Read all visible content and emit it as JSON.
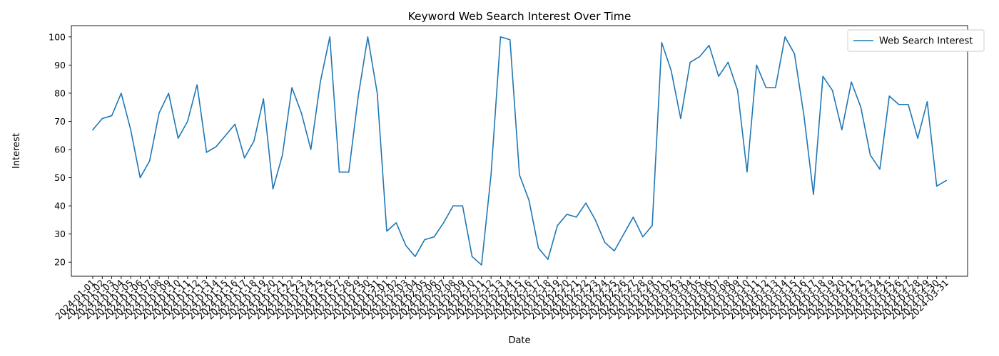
{
  "chart_data": {
    "type": "line",
    "title": "Keyword Web Search Interest Over Time",
    "xlabel": "Date",
    "ylabel": "Interest",
    "ylim": [
      15,
      104
    ],
    "yticks": [
      20,
      30,
      40,
      50,
      60,
      70,
      80,
      90,
      100
    ],
    "grid": false,
    "legend_position": "top-right",
    "color": "#1f77b4",
    "series": [
      {
        "name": "Web Search Interest",
        "values": [
          67,
          71,
          72,
          80,
          67,
          50,
          56,
          73,
          80,
          64,
          70,
          83,
          59,
          61,
          65,
          69,
          57,
          63,
          78,
          46,
          58,
          82,
          73,
          60,
          84,
          100,
          52,
          52,
          79,
          100,
          80,
          31,
          34,
          26,
          22,
          28,
          29,
          34,
          40,
          40,
          22,
          19,
          51,
          100,
          99,
          51,
          42,
          25,
          21,
          33,
          37,
          36,
          41,
          35,
          27,
          24,
          30,
          36,
          29,
          33,
          98,
          88,
          71,
          91,
          93,
          97,
          86,
          91,
          81,
          52,
          90,
          82,
          82,
          100,
          94,
          72,
          44,
          86,
          81,
          67,
          84,
          75,
          58,
          53,
          79,
          76,
          76,
          64,
          77,
          47,
          49
        ]
      }
    ],
    "x": [
      "2024-01-01",
      "2024-01-02",
      "2024-01-03",
      "2024-01-04",
      "2024-01-05",
      "2024-01-06",
      "2024-01-07",
      "2024-01-08",
      "2024-01-09",
      "2024-01-10",
      "2024-01-11",
      "2024-01-12",
      "2024-01-13",
      "2024-01-14",
      "2024-01-15",
      "2024-01-16",
      "2024-01-17",
      "2024-01-18",
      "2024-01-19",
      "2024-01-20",
      "2024-01-21",
      "2024-01-22",
      "2024-01-23",
      "2024-01-24",
      "2024-01-25",
      "2024-01-26",
      "2024-01-27",
      "2024-01-28",
      "2024-01-29",
      "2024-01-30",
      "2024-01-31",
      "2024-02-01",
      "2024-02-02",
      "2024-02-03",
      "2024-02-04",
      "2024-02-05",
      "2024-02-06",
      "2024-02-07",
      "2024-02-08",
      "2024-02-09",
      "2024-02-10",
      "2024-02-11",
      "2024-02-12",
      "2024-02-13",
      "2024-02-14",
      "2024-02-15",
      "2024-02-16",
      "2024-02-17",
      "2024-02-18",
      "2024-02-19",
      "2024-02-20",
      "2024-02-21",
      "2024-02-22",
      "2024-02-23",
      "2024-02-24",
      "2024-02-25",
      "2024-02-26",
      "2024-02-27",
      "2024-02-28",
      "2024-02-29",
      "2024-03-01",
      "2024-03-02",
      "2024-03-03",
      "2024-03-04",
      "2024-03-05",
      "2024-03-06",
      "2024-03-07",
      "2024-03-08",
      "2024-03-09",
      "2024-03-10",
      "2024-03-11",
      "2024-03-12",
      "2024-03-13",
      "2024-03-14",
      "2024-03-15",
      "2024-03-16",
      "2024-03-17",
      "2024-03-18",
      "2024-03-19",
      "2024-03-20",
      "2024-03-21",
      "2024-03-22",
      "2024-03-23",
      "2024-03-24",
      "2024-03-25",
      "2024-03-26",
      "2024-03-27",
      "2024-03-28",
      "2024-03-29",
      "2024-03-30",
      "2024-03-31"
    ]
  }
}
